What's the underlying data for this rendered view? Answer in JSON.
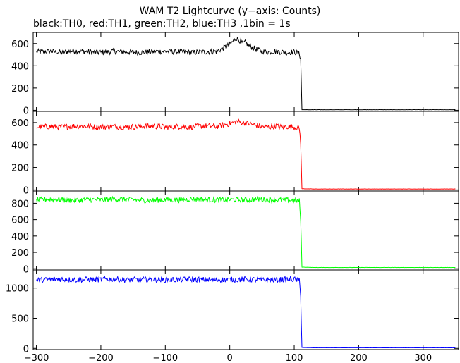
{
  "header": {
    "title": "WAM T2 Lightcurve (y−axis: Counts)",
    "subtitle": "black:TH0, red:TH1, green:TH2, blue:TH3 ,1bin = 1s"
  },
  "chart_data": [
    {
      "type": "line",
      "name": "TH0",
      "color": "#000000",
      "xlim": [
        -305,
        355
      ],
      "ylim": [
        -10,
        700
      ],
      "yticks": [
        0,
        200,
        400,
        600
      ],
      "ytick_labels": [
        "0",
        "200",
        "400",
        "600"
      ],
      "x": [
        -300,
        -280,
        -260,
        -240,
        -220,
        -200,
        -180,
        -160,
        -140,
        -120,
        -100,
        -80,
        -60,
        -40,
        -20,
        0,
        5,
        10,
        15,
        20,
        25,
        30,
        40,
        50,
        60,
        70,
        80,
        90,
        100,
        108,
        110,
        112,
        130,
        160,
        200,
        250,
        300,
        350
      ],
      "values": [
        525,
        530,
        520,
        535,
        525,
        520,
        530,
        525,
        520,
        525,
        530,
        525,
        520,
        525,
        530,
        590,
        620,
        650,
        630,
        600,
        610,
        580,
        550,
        530,
        525,
        530,
        525,
        520,
        525,
        510,
        470,
        5,
        5,
        5,
        5,
        5,
        5,
        5
      ]
    },
    {
      "type": "line",
      "name": "TH1",
      "color": "#ff0000",
      "xlim": [
        -305,
        355
      ],
      "ylim": [
        -10,
        700
      ],
      "yticks": [
        0,
        200,
        400,
        600
      ],
      "ytick_labels": [
        "0",
        "200",
        "400",
        "600"
      ],
      "x": [
        -300,
        -280,
        -260,
        -240,
        -220,
        -200,
        -180,
        -160,
        -140,
        -120,
        -100,
        -80,
        -60,
        -40,
        -20,
        0,
        10,
        20,
        30,
        40,
        50,
        60,
        70,
        80,
        90,
        100,
        108,
        110,
        112,
        130,
        160,
        200,
        250,
        300,
        350
      ],
      "values": [
        560,
        565,
        560,
        570,
        565,
        560,
        565,
        560,
        565,
        570,
        560,
        565,
        560,
        570,
        565,
        590,
        610,
        600,
        590,
        575,
        565,
        560,
        570,
        560,
        565,
        560,
        550,
        430,
        10,
        8,
        8,
        8,
        8,
        8,
        8
      ]
    },
    {
      "type": "line",
      "name": "TH2",
      "color": "#00ff00",
      "xlim": [
        -305,
        355
      ],
      "ylim": [
        -15,
        950
      ],
      "yticks": [
        0,
        200,
        400,
        600,
        800
      ],
      "ytick_labels": [
        "0",
        "200",
        "400",
        "600",
        "800"
      ],
      "x": [
        -300,
        -280,
        -260,
        -240,
        -220,
        -200,
        -180,
        -160,
        -140,
        -120,
        -100,
        -80,
        -60,
        -40,
        -20,
        0,
        20,
        40,
        60,
        80,
        100,
        108,
        110,
        112,
        130,
        160,
        200,
        250,
        300,
        350
      ],
      "values": [
        840,
        850,
        845,
        835,
        845,
        840,
        850,
        845,
        840,
        835,
        845,
        840,
        850,
        845,
        840,
        845,
        840,
        850,
        845,
        840,
        835,
        830,
        600,
        20,
        15,
        15,
        15,
        15,
        15,
        15
      ]
    },
    {
      "type": "line",
      "name": "TH3",
      "color": "#0000ff",
      "xlim": [
        -305,
        355
      ],
      "ylim": [
        -20,
        1300
      ],
      "yticks": [
        0,
        500,
        1000
      ],
      "ytick_labels": [
        "0",
        "500",
        "1000"
      ],
      "x": [
        -300,
        -280,
        -260,
        -240,
        -220,
        -200,
        -180,
        -160,
        -140,
        -120,
        -100,
        -80,
        -60,
        -40,
        -20,
        0,
        20,
        40,
        60,
        80,
        100,
        108,
        110,
        112,
        130,
        160,
        200,
        250,
        300,
        350
      ],
      "values": [
        1130,
        1140,
        1150,
        1135,
        1145,
        1140,
        1150,
        1135,
        1140,
        1145,
        1135,
        1140,
        1145,
        1140,
        1135,
        1140,
        1145,
        1140,
        1135,
        1140,
        1145,
        1130,
        900,
        15,
        10,
        10,
        10,
        10,
        10,
        10
      ]
    }
  ],
  "x_axis": {
    "ticks": [
      -300,
      -200,
      -100,
      0,
      100,
      200,
      300
    ],
    "tick_labels": [
      "−300",
      "−200",
      "−100",
      "0",
      "100",
      "200",
      "300"
    ]
  }
}
